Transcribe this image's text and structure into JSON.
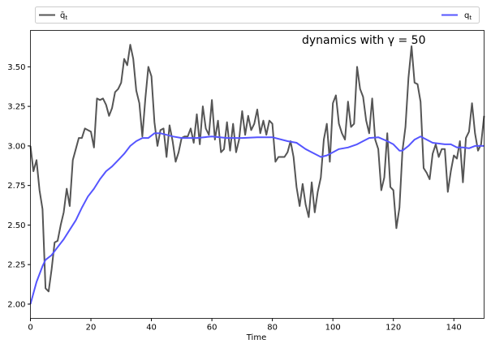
{
  "chart_data": {
    "type": "line",
    "title": "dynamics with γ = 50",
    "xlabel": "Time",
    "ylabel": "",
    "xlim": [
      0,
      150
    ],
    "ylim": [
      1.91,
      3.73
    ],
    "grid": false,
    "legend_placement": "top, above plot (expanded)",
    "xticks": [
      "0",
      "20",
      "40",
      "60",
      "80",
      "100",
      "120",
      "140"
    ],
    "yticks": [
      "2.00",
      "2.25",
      "2.50",
      "2.75",
      "3.00",
      "3.25",
      "3.50"
    ],
    "series": [
      {
        "name": "q̄_t",
        "legend_main": "q̄",
        "legend_sub": "t",
        "color": "#555555",
        "x": [
          0,
          1,
          2,
          3,
          4,
          5,
          6,
          7,
          8,
          9,
          10,
          11,
          12,
          13,
          14,
          15,
          16,
          17,
          18,
          19,
          20,
          21,
          22,
          23,
          24,
          25,
          26,
          27,
          28,
          29,
          30,
          31,
          32,
          33,
          34,
          35,
          36,
          37,
          38,
          39,
          40,
          41,
          42,
          43,
          44,
          45,
          46,
          47,
          48,
          49,
          50,
          51,
          52,
          53,
          54,
          55,
          56,
          57,
          58,
          59,
          60,
          61,
          62,
          63,
          64,
          65,
          66,
          67,
          68,
          69,
          70,
          71,
          72,
          73,
          74,
          75,
          76,
          77,
          78,
          79,
          80,
          81,
          82,
          83,
          84,
          85,
          86,
          87,
          88,
          89,
          90,
          91,
          92,
          93,
          94,
          95,
          96,
          97,
          98,
          99,
          100,
          101,
          102,
          103,
          104,
          105,
          106,
          107,
          108,
          109,
          110,
          111,
          112,
          113,
          114,
          115,
          116,
          117,
          118,
          119,
          120,
          121,
          122,
          123,
          124,
          125,
          126,
          127,
          128,
          129,
          130,
          131,
          132,
          133,
          134,
          135,
          136,
          137,
          138,
          139,
          140,
          141,
          142,
          143,
          144,
          145,
          146,
          147,
          148,
          149,
          150
        ],
        "y": [
          3.0,
          2.84,
          2.91,
          2.72,
          2.6,
          2.1,
          2.08,
          2.22,
          2.39,
          2.4,
          2.5,
          2.58,
          2.73,
          2.62,
          2.91,
          2.98,
          3.05,
          3.05,
          3.11,
          3.1,
          3.09,
          2.99,
          3.3,
          3.29,
          3.3,
          3.26,
          3.19,
          3.24,
          3.34,
          3.36,
          3.4,
          3.55,
          3.51,
          3.64,
          3.55,
          3.35,
          3.27,
          3.06,
          3.3,
          3.5,
          3.44,
          3.15,
          3.0,
          3.1,
          3.11,
          2.93,
          3.13,
          3.03,
          2.9,
          2.96,
          3.05,
          3.06,
          3.06,
          3.11,
          3.02,
          3.2,
          3.01,
          3.25,
          3.11,
          3.07,
          3.29,
          3.04,
          3.16,
          2.96,
          2.98,
          3.15,
          2.97,
          3.14,
          2.96,
          3.04,
          3.22,
          3.07,
          3.19,
          3.1,
          3.14,
          3.23,
          3.08,
          3.16,
          3.07,
          3.16,
          3.14,
          2.9,
          2.93,
          2.93,
          2.93,
          2.96,
          3.03,
          2.93,
          2.74,
          2.62,
          2.76,
          2.63,
          2.55,
          2.77,
          2.58,
          2.71,
          2.8,
          3.04,
          3.14,
          2.9,
          3.27,
          3.32,
          3.14,
          3.08,
          3.04,
          3.28,
          3.12,
          3.14,
          3.5,
          3.36,
          3.31,
          3.16,
          3.08,
          3.3,
          3.04,
          2.98,
          2.72,
          2.8,
          3.08,
          2.74,
          2.72,
          2.48,
          2.61,
          2.97,
          3.12,
          3.43,
          3.63,
          3.4,
          3.39,
          3.28,
          2.86,
          2.83,
          2.79,
          2.95,
          3.01,
          2.93,
          2.98,
          2.98,
          2.71,
          2.84,
          2.94,
          2.92,
          3.03,
          2.77,
          3.05,
          3.09,
          3.27,
          3.08,
          2.97,
          3.01,
          3.19
        ]
      },
      {
        "name": "q_t",
        "legend_main": "q",
        "legend_sub": "t",
        "color": "#5555ff",
        "x": [
          0,
          2,
          4,
          5,
          7,
          9,
          11,
          13,
          15,
          17,
          19,
          21,
          23,
          25,
          27,
          29,
          31,
          33,
          35,
          37,
          39,
          41,
          43,
          45,
          47,
          50,
          55,
          60,
          65,
          70,
          75,
          80,
          85,
          88,
          91,
          94,
          96,
          98,
          100,
          102,
          105,
          108,
          110,
          112,
          115,
          118,
          120,
          122,
          123,
          125,
          127,
          129,
          131,
          133,
          137,
          139,
          141,
          143,
          145,
          147,
          150
        ],
        "y": [
          2.0,
          2.14,
          2.24,
          2.28,
          2.31,
          2.36,
          2.41,
          2.47,
          2.53,
          2.61,
          2.68,
          2.73,
          2.79,
          2.84,
          2.87,
          2.91,
          2.95,
          3.0,
          3.03,
          3.05,
          3.05,
          3.08,
          3.08,
          3.07,
          3.06,
          3.05,
          3.05,
          3.06,
          3.05,
          3.05,
          3.055,
          3.055,
          3.03,
          3.02,
          2.98,
          2.95,
          2.93,
          2.94,
          2.96,
          2.98,
          2.99,
          3.01,
          3.03,
          3.05,
          3.055,
          3.03,
          3.01,
          2.97,
          2.97,
          3.0,
          3.04,
          3.06,
          3.04,
          3.02,
          3.01,
          3.01,
          2.99,
          2.99,
          2.985,
          3.0,
          3.0
        ]
      }
    ]
  }
}
